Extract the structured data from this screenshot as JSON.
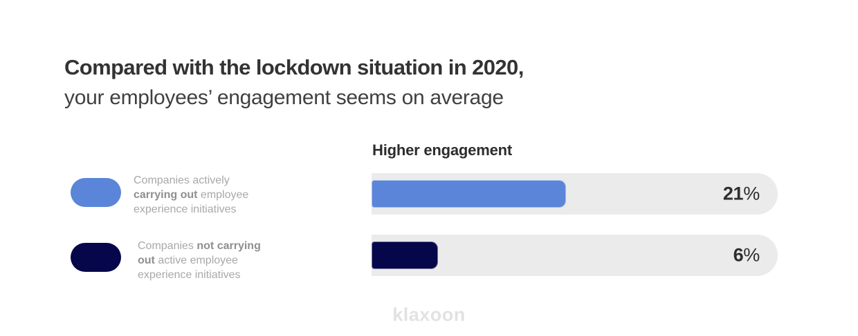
{
  "title": {
    "line1": "Compared with the lockdown situation in 2020,",
    "line2": "your employees’ engagement seems on average"
  },
  "legend": {
    "items": [
      {
        "swatch_color": "#5a85d8",
        "segments": [
          {
            "text": "Companies actively\n",
            "bold": false
          },
          {
            "text": "carrying out",
            "bold": true
          },
          {
            "text": " employee\nexperience initiatives",
            "bold": false
          }
        ]
      },
      {
        "swatch_color": "#06064a",
        "segments": [
          {
            "text": "Companies ",
            "bold": false
          },
          {
            "text": "not carrying\nout",
            "bold": true
          },
          {
            "text": " active employee\nexperience initiatives",
            "bold": false
          }
        ]
      }
    ]
  },
  "chart_data": {
    "type": "bar",
    "orientation": "horizontal",
    "title": "Higher engagement",
    "categories": [
      "Companies actively carrying out employee experience initiatives",
      "Companies not carrying out active employee experience initiatives"
    ],
    "values": [
      21,
      6
    ],
    "unit": "%",
    "track_color": "#ebebeb",
    "legend_position": "left",
    "grid": false,
    "bars": [
      {
        "label": "21",
        "unit": "%",
        "value": 21,
        "track_fraction": 0.479,
        "color": "#5a85d8"
      },
      {
        "label": "6",
        "unit": "%",
        "value": 6,
        "track_fraction": 0.164,
        "color": "#06064a"
      }
    ]
  },
  "footer": {
    "logo_text": "klaxoon"
  }
}
